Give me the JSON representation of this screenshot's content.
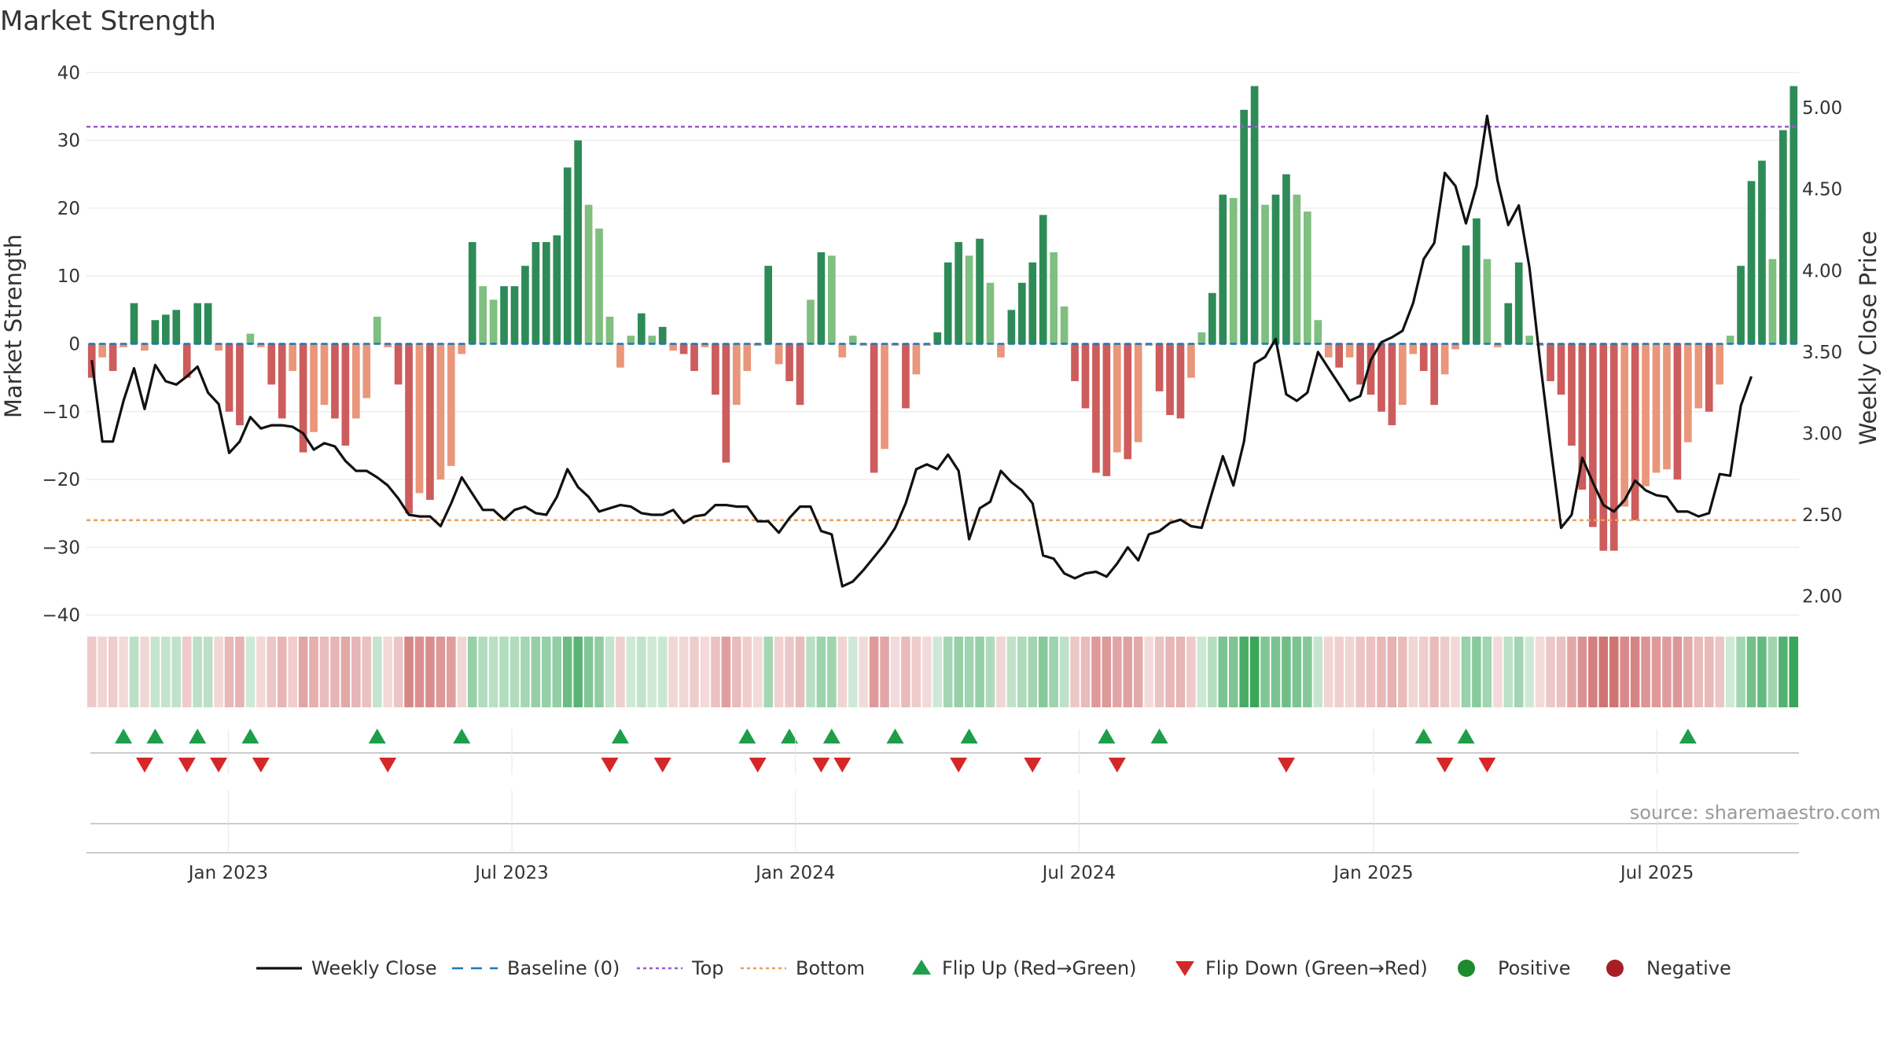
{
  "chart_data": {
    "type": "bar",
    "title": "Market Strength",
    "ylabel_left": "Market Strength",
    "ylabel_right": "Weekly Close Price",
    "source": "source: sharemaestro.com",
    "left_axis": {
      "ylim": [
        -42,
        42
      ],
      "ticks": [
        40,
        30,
        20,
        10,
        0,
        -10,
        -20,
        -30,
        -40
      ]
    },
    "right_axis": {
      "ylim": [
        1.8,
        5.3
      ],
      "ticks": [
        5.0,
        4.5,
        4.0,
        3.5,
        3.0,
        2.5,
        2.0
      ]
    },
    "x_axis": {
      "start": "2022-10-03",
      "end": "2025-10-06",
      "ticks": [
        {
          "label": "Jan 2023",
          "date": "2023-01-02"
        },
        {
          "label": "Jul 2023",
          "date": "2023-07-03"
        },
        {
          "label": "Jan 2024",
          "date": "2024-01-01"
        },
        {
          "label": "Jul 2024",
          "date": "2024-07-01"
        },
        {
          "label": "Jan 2025",
          "date": "2025-01-06"
        },
        {
          "label": "Jul 2025",
          "date": "2025-07-07"
        }
      ]
    },
    "top_line": 32,
    "bottom_line": -26,
    "strength": [
      -5,
      -2,
      -4,
      -0.5,
      6,
      -1,
      3.5,
      4.3,
      5,
      -5,
      6,
      6,
      -1,
      -10,
      -12,
      1.5,
      -0.5,
      -6,
      -11,
      -4,
      -16,
      -13,
      -9,
      -11,
      -15,
      -11,
      -8,
      4,
      -0.5,
      -6,
      -25,
      -22,
      -23,
      -20,
      -18,
      -1.5,
      15,
      8.5,
      6.5,
      8.5,
      8.5,
      11.5,
      15,
      15,
      16,
      26,
      30,
      20.5,
      17,
      4,
      -3.5,
      1.2,
      4.5,
      1.2,
      2.5,
      -1,
      -1.5,
      -4,
      -0.5,
      -7.5,
      -17.5,
      -9,
      -4,
      -0.3,
      11.5,
      -3,
      -5.5,
      -9,
      6.5,
      13.5,
      13,
      -2,
      1.2,
      -0.3,
      -19,
      -15.5,
      -0.3,
      -9.5,
      -4.5,
      -0.3,
      1.7,
      12,
      15,
      13,
      15.5,
      9,
      -2,
      5,
      9,
      12,
      19,
      13.5,
      5.5,
      -5.5,
      -9.5,
      -19,
      -19.5,
      -16,
      -17,
      -14.5,
      -0.3,
      -7,
      -10.5,
      -11,
      -5,
      1.7,
      7.5,
      22,
      21.5,
      34.5,
      38,
      20.5,
      22,
      25,
      22,
      19.5,
      3.5,
      -2,
      -3.5,
      -2,
      -6,
      -7.5,
      -10,
      -12,
      -9,
      -1.5,
      -4,
      -9,
      -4.5,
      -0.8,
      14.5,
      18.5,
      12.5,
      -0.5,
      6,
      12,
      1.2,
      -0.3,
      -5.5,
      -7.5,
      -15,
      -21.5,
      -27,
      -30.5,
      -30.5,
      -24,
      -26,
      -21,
      -19,
      -18.5,
      -20,
      -14.5,
      -9.5,
      -10,
      -6,
      1.2,
      11.5,
      24,
      27,
      12.5,
      31.5,
      38
    ],
    "weekly_close": [
      3.45,
      2.95,
      2.95,
      3.2,
      3.4,
      3.15,
      3.42,
      3.32,
      3.3,
      3.35,
      3.41,
      3.25,
      3.18,
      2.88,
      2.95,
      3.1,
      3.03,
      3.05,
      3.05,
      3.04,
      3.0,
      2.9,
      2.94,
      2.92,
      2.83,
      2.77,
      2.77,
      2.73,
      2.68,
      2.6,
      2.5,
      2.49,
      2.49,
      2.43,
      2.57,
      2.73,
      2.63,
      2.53,
      2.53,
      2.47,
      2.53,
      2.55,
      2.51,
      2.5,
      2.61,
      2.78,
      2.67,
      2.61,
      2.52,
      2.54,
      2.56,
      2.55,
      2.51,
      2.5,
      2.5,
      2.53,
      2.45,
      2.49,
      2.5,
      2.56,
      2.56,
      2.55,
      2.55,
      2.46,
      2.46,
      2.39,
      2.48,
      2.55,
      2.55,
      2.4,
      2.38,
      2.06,
      2.09,
      2.16,
      2.24,
      2.32,
      2.42,
      2.57,
      2.78,
      2.81,
      2.78,
      2.87,
      2.77,
      2.35,
      2.54,
      2.58,
      2.77,
      2.7,
      2.65,
      2.57,
      2.25,
      2.23,
      2.14,
      2.11,
      2.14,
      2.15,
      2.12,
      2.2,
      2.3,
      2.22,
      2.38,
      2.4,
      2.45,
      2.47,
      2.43,
      2.42,
      2.64,
      2.86,
      2.68,
      2.95,
      3.43,
      3.47,
      3.58,
      3.24,
      3.2,
      3.25,
      3.5,
      3.4,
      3.3,
      3.2,
      3.23,
      3.45,
      3.56,
      3.59,
      3.63,
      3.8,
      4.07,
      4.17,
      4.6,
      4.52,
      4.29,
      4.52,
      4.95,
      4.55,
      4.28,
      4.4,
      4.02,
      3.45,
      2.92,
      2.42,
      2.5,
      2.85,
      2.7,
      2.56,
      2.52,
      2.59,
      2.71,
      2.65,
      2.62,
      2.61,
      2.52,
      2.52,
      2.49,
      2.51,
      2.75,
      2.74,
      3.17,
      3.35
    ],
    "flip_up_weeks": [
      3,
      6,
      10,
      15,
      27,
      35,
      50,
      62,
      66,
      70,
      76,
      83,
      96,
      101,
      126,
      130,
      151
    ],
    "flip_down_weeks": [
      5,
      9,
      12,
      16,
      28,
      49,
      54,
      63,
      69,
      71,
      82,
      89,
      97,
      113,
      128,
      132
    ],
    "colors": {
      "pos_strong": "#2e8b57",
      "pos_weak": "#7fbf7f",
      "neg_strong": "#cd5c5c",
      "neg_weak": "#e9967a",
      "baseline": "#1f77b4",
      "top": "#9b59d0",
      "bottom": "#e8a05a",
      "flip_up": "#1e9e4a",
      "flip_down": "#d62728",
      "positive": "#1e8a2e",
      "negative": "#a81e24"
    },
    "legend": [
      {
        "label": "Weekly Close",
        "kind": "line"
      },
      {
        "label": "Baseline (0)",
        "kind": "dash"
      },
      {
        "label": "Top",
        "kind": "dot"
      },
      {
        "label": "Bottom",
        "kind": "dotorange"
      },
      {
        "label": "Flip Up (Red→Green)",
        "kind": "up"
      },
      {
        "label": "Flip Down (Green→Red)",
        "kind": "down"
      },
      {
        "label": "Positive",
        "kind": "circpos"
      },
      {
        "label": "Negative",
        "kind": "circneg"
      }
    ]
  }
}
